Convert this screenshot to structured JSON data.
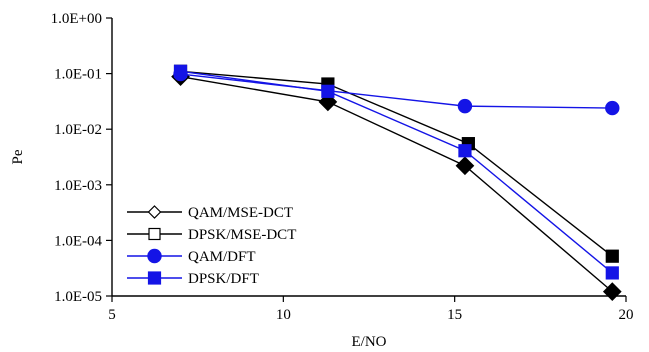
{
  "chart_data": {
    "type": "line",
    "title": "",
    "xlabel": "E/NO",
    "ylabel": "Pe",
    "xlim": [
      5,
      20
    ],
    "ylim": [
      1e-05,
      1
    ],
    "y_scale": "log",
    "grid": false,
    "legend_position": "bottom-left",
    "x_ticks": [
      "5",
      "10",
      "15",
      "20"
    ],
    "y_ticks": [
      "1.0E-05",
      "1.0E-04",
      "1.0E-03",
      "1.0E-02",
      "1.0E-01",
      "1.0E+00"
    ],
    "series": [
      {
        "name": "QAM/MSE-DCT",
        "color": "#000000",
        "marker": "diamond",
        "x": [
          7.0,
          11.3,
          15.3,
          19.6
        ],
        "y": [
          0.088,
          0.031,
          0.0022,
          1.2e-05
        ]
      },
      {
        "name": "DPSK/MSE-DCT",
        "color": "#000000",
        "marker": "square",
        "x": [
          7.0,
          11.3,
          15.4,
          19.6
        ],
        "y": [
          0.11,
          0.065,
          0.0055,
          5.2e-05
        ]
      },
      {
        "name": "QAM/DFT",
        "color": "#1414e6",
        "marker": "circle",
        "x": [
          7.0,
          15.3,
          19.6
        ],
        "y": [
          0.098,
          0.026,
          0.024
        ]
      },
      {
        "name": "DPSK/DFT",
        "color": "#1414e6",
        "marker": "square",
        "x": [
          7.0,
          11.3,
          15.3,
          19.6
        ],
        "y": [
          0.11,
          0.048,
          0.0041,
          2.6e-05
        ]
      }
    ]
  }
}
